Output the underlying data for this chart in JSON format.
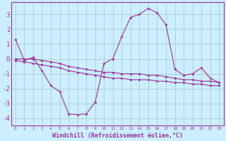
{
  "xlabel": "Windchill (Refroidissement éolien,°C)",
  "bg_color": "#cceeff",
  "grid_color": "#aacccc",
  "line_color": "#993399",
  "x_hours": [
    0,
    1,
    2,
    3,
    4,
    5,
    6,
    7,
    8,
    9,
    10,
    11,
    12,
    13,
    14,
    15,
    16,
    17,
    18,
    19,
    20,
    21,
    22,
    23
  ],
  "line1_y": [
    1.3,
    -0.1,
    0.1,
    -0.8,
    -1.8,
    -2.2,
    -3.7,
    -3.75,
    -3.7,
    -2.9,
    -0.3,
    0.0,
    1.5,
    2.8,
    3.0,
    3.4,
    3.1,
    2.3,
    -0.7,
    -1.1,
    -1.0,
    -0.6,
    -1.3,
    -1.6
  ],
  "line2_y": [
    0.0,
    0.0,
    0.0,
    -0.1,
    -0.2,
    -0.3,
    -0.5,
    -0.6,
    -0.7,
    -0.8,
    -0.9,
    -0.9,
    -1.0,
    -1.0,
    -1.0,
    -1.1,
    -1.1,
    -1.2,
    -1.3,
    -1.4,
    -1.4,
    -1.5,
    -1.5,
    -1.6
  ],
  "line3_y": [
    -0.1,
    -0.2,
    -0.3,
    -0.4,
    -0.5,
    -0.6,
    -0.8,
    -0.9,
    -1.0,
    -1.1,
    -1.2,
    -1.3,
    -1.3,
    -1.4,
    -1.4,
    -1.4,
    -1.5,
    -1.5,
    -1.6,
    -1.6,
    -1.7,
    -1.7,
    -1.8,
    -1.8
  ],
  "ylim": [
    -4.5,
    3.8
  ],
  "yticks": [
    -4,
    -3,
    -2,
    -1,
    0,
    1,
    2,
    3
  ],
  "xlim": [
    -0.5,
    23.5
  ],
  "linewidth": 0.8,
  "markersize": 2.0,
  "xtick_fontsize": 4.5,
  "ytick_fontsize": 6.5,
  "xlabel_fontsize": 6.0
}
